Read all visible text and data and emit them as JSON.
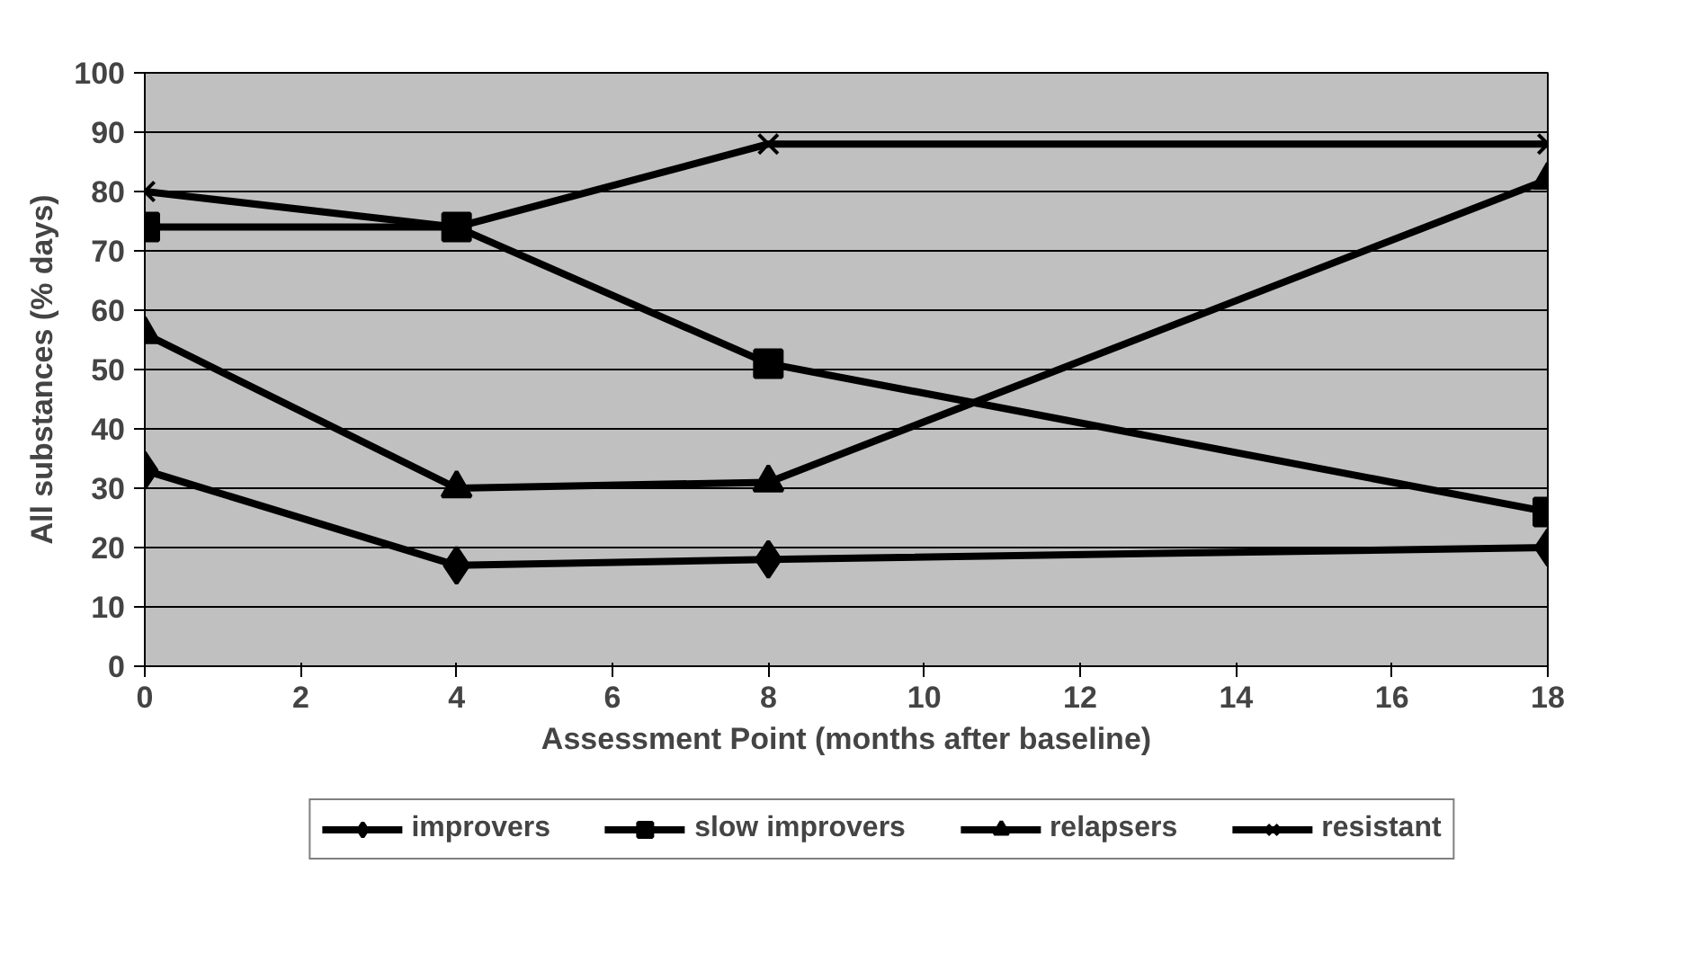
{
  "chart_data": {
    "type": "line",
    "xlabel": "Assessment Point (months after baseline)",
    "ylabel": "All substances (% days)",
    "x": [
      0,
      4,
      8,
      18
    ],
    "xlim": [
      0,
      18
    ],
    "xticks": [
      0,
      2,
      4,
      6,
      8,
      10,
      12,
      14,
      16,
      18
    ],
    "ylim": [
      0,
      100
    ],
    "yticks": [
      0,
      10,
      20,
      30,
      40,
      50,
      60,
      70,
      80,
      90,
      100
    ],
    "grid": "y",
    "legend": "bottom",
    "series": [
      {
        "name": "improvers",
        "color": "#000000",
        "marker": "diamond",
        "values": [
          33,
          17,
          18,
          20
        ]
      },
      {
        "name": "slow improvers",
        "color": "#000000",
        "marker": "square",
        "values": [
          74,
          74,
          51,
          26
        ]
      },
      {
        "name": "relapsers",
        "color": "#000000",
        "marker": "triangle",
        "values": [
          56,
          30,
          31,
          82
        ]
      },
      {
        "name": "resistant",
        "color": "#000000",
        "marker": "cross",
        "values": [
          80,
          74,
          88,
          88
        ]
      }
    ]
  }
}
